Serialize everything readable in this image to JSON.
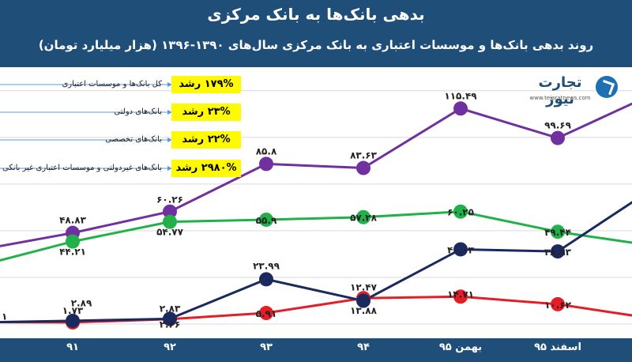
{
  "header": {
    "title": "بدهی بانک‌ها به بانک مرکزی",
    "subtitle": "روند بدهی بانک‌ها و موسسات اعتباری به بانک مرکزی سال‌های ۱۳۹۰-۱۳۹۶ (هزار میلیارد تومان)"
  },
  "logo": {
    "name": "تجارت نیوز",
    "url": "www.tejaratnews.com",
    "icon": "tejarat-news-logo-icon"
  },
  "legend": [
    {
      "label": "کل بانک‌ها و موسسات اعتباری",
      "growth": "۱۷۹% رشد",
      "color": "#7030a0"
    },
    {
      "label": "بانک‌های دولتی",
      "growth": "۲۳% رشد",
      "color": "#22b04b"
    },
    {
      "label": "بانک‌های تخصصی",
      "growth": "۲۲% رشد",
      "color": "#e41e26"
    },
    {
      "label": "بانک‌های غیردولتی و موسسات اعتباری غیر بانکی",
      "growth": "۲۹۸۰% رشد",
      "color": "#1b2a5e"
    }
  ],
  "chart_data": {
    "type": "line",
    "categories": [
      "",
      "۹۱",
      "۹۲",
      "۹۳",
      "۹۴",
      "بهمن ۹۵",
      "اسفند ۹۵",
      ""
    ],
    "ylim": [
      0,
      130
    ],
    "grid": true,
    "series": [
      {
        "color": "#7030a0",
        "values": [
          41.0,
          48.83,
          60.26,
          85.8,
          83.63,
          115.49,
          99.69,
          120.0
        ],
        "labels": [
          "",
          "۴۸.۸۳",
          "۶۰.۲۶",
          "۸۵.۸",
          "۸۳.۶۳",
          "۱۱۵.۴۹",
          "۹۹.۶۹",
          ""
        ]
      },
      {
        "color": "#22b04b",
        "values": [
          33.0,
          44.21,
          54.77,
          55.9,
          57.28,
          60.25,
          49.44,
          43.0
        ],
        "labels": [
          "",
          "۴۴.۲۱",
          "۵۴.۷۷",
          "۵۵.۹",
          "۵۷.۲۸",
          "۶۰.۲۵",
          "۴۹.۴۴",
          ""
        ]
      },
      {
        "color": "#e41e26",
        "values": [
          1.1,
          0.9,
          2.66,
          5.91,
          13.88,
          14.71,
          10.62,
          4.0
        ],
        "labels": [
          "۱",
          "",
          "۲.۶۶",
          "۵.۹۱",
          "۱۳.۸۸",
          "۱۴.۷۱",
          "۱۰.۶۲",
          ""
        ]
      },
      {
        "color": "#1b2a5e",
        "values": [
          1.0,
          1.73,
          2.83,
          23.99,
          12.47,
          40.03,
          38.93,
          68.0
        ],
        "labels": [
          "",
          "۱.۷۳",
          "۲.۸۳",
          "۲۳.۹۹",
          "۱۲.۴۷",
          "۴۰.۰۳",
          "۳۸.۹۳",
          ""
        ]
      }
    ],
    "extra_labels": [
      {
        "text": "۲.۸۹"
      }
    ]
  }
}
